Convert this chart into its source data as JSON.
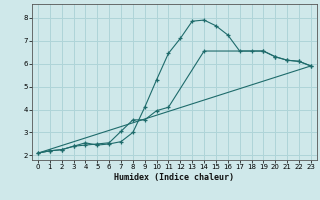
{
  "xlabel": "Humidex (Indice chaleur)",
  "bg_color": "#cfe8ea",
  "grid_color": "#afd4d8",
  "line_color": "#1e6b6b",
  "xlim": [
    -0.5,
    23.5
  ],
  "ylim": [
    1.8,
    8.6
  ],
  "xticks": [
    0,
    1,
    2,
    3,
    4,
    5,
    6,
    7,
    8,
    9,
    10,
    11,
    12,
    13,
    14,
    15,
    16,
    17,
    18,
    19,
    20,
    21,
    22,
    23
  ],
  "yticks": [
    2,
    3,
    4,
    5,
    6,
    7,
    8
  ],
  "curve1_x": [
    0,
    1,
    2,
    3,
    4,
    5,
    6,
    7,
    8,
    9,
    10,
    11,
    12,
    13,
    14,
    15,
    16,
    17,
    18,
    19,
    20,
    21,
    22,
    23
  ],
  "curve1_y": [
    2.1,
    2.2,
    2.25,
    2.4,
    2.55,
    2.45,
    2.5,
    2.6,
    3.0,
    4.1,
    5.3,
    6.45,
    7.1,
    7.85,
    7.9,
    7.65,
    7.25,
    6.55,
    6.55,
    6.55,
    6.3,
    6.15,
    6.1,
    5.9
  ],
  "curve2_x": [
    0,
    1,
    2,
    3,
    4,
    5,
    6,
    7,
    8,
    9,
    10,
    11,
    14,
    19,
    20,
    21,
    22,
    23
  ],
  "curve2_y": [
    2.1,
    2.2,
    2.25,
    2.4,
    2.45,
    2.5,
    2.55,
    3.05,
    3.55,
    3.55,
    3.95,
    4.1,
    6.55,
    6.55,
    6.3,
    6.15,
    6.1,
    5.9
  ],
  "curve3_x": [
    0,
    23
  ],
  "curve3_y": [
    2.1,
    5.9
  ]
}
